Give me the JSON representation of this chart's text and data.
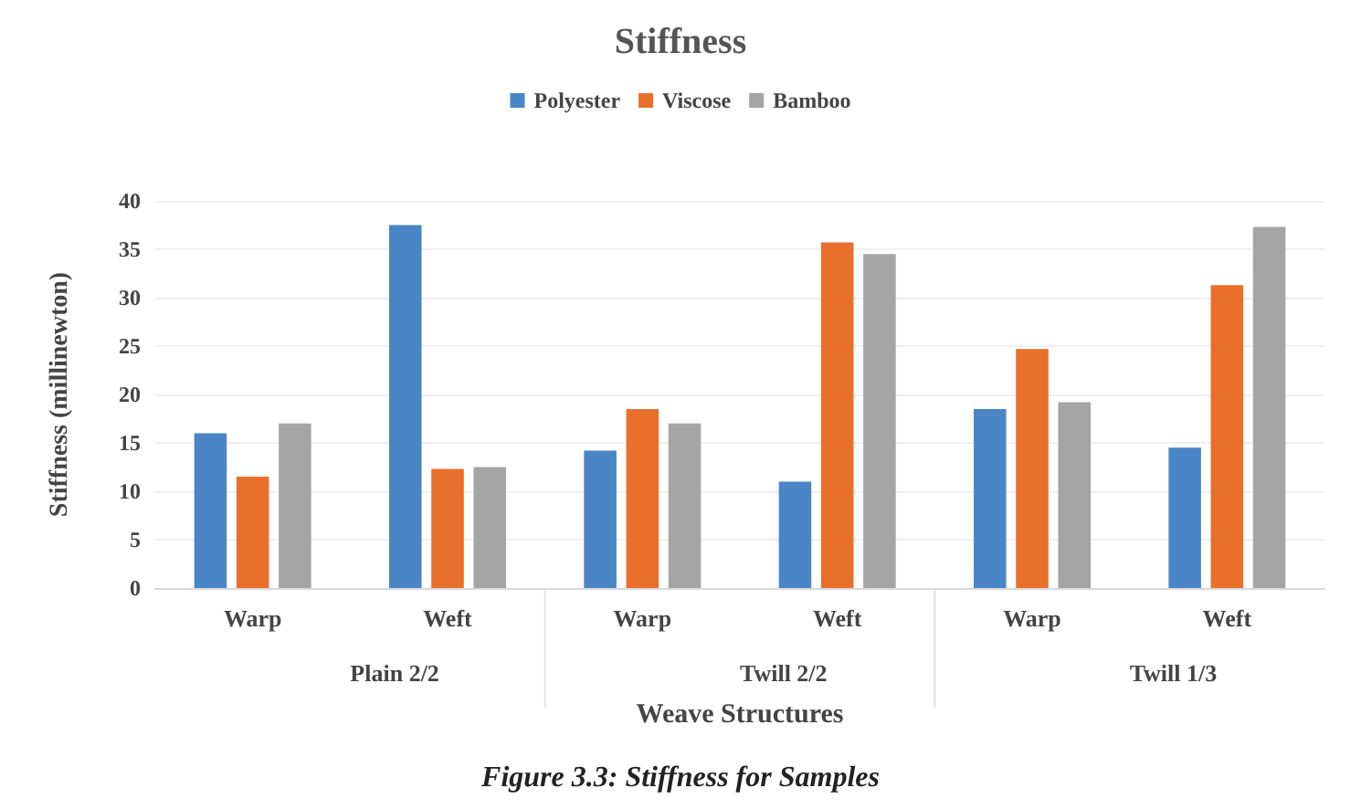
{
  "chart_data": {
    "type": "bar",
    "title": "Stiffness",
    "xlabel": "Weave Structures",
    "ylabel": "Stiffness (millinewton)",
    "categories": [
      "Warp",
      "Weft",
      "Warp",
      "Weft",
      "Warp",
      "Weft"
    ],
    "series": [
      {
        "name": "Polyester",
        "color": "#4a86c5",
        "values": [
          16,
          37.5,
          14.2,
          11,
          18.5,
          14.5
        ]
      },
      {
        "name": "Viscose",
        "color": "#e8702a",
        "values": [
          11.5,
          12.3,
          18.5,
          35.7,
          24.7,
          31.3
        ]
      },
      {
        "name": "Bamboo",
        "color": "#a5a5a5",
        "values": [
          17,
          12.5,
          17,
          34.5,
          19.2,
          37.3
        ]
      }
    ],
    "annotations": [
      "Plain 2/2",
      "Twill 2/2",
      "Twill 1/3",
      "Figure 3.3: Stiffness for Samples"
    ],
    "ylim": [
      0,
      40
    ],
    "yticks": [
      0,
      5,
      10,
      15,
      20,
      25,
      30,
      35,
      40
    ],
    "grid": "y",
    "legend": "top"
  }
}
